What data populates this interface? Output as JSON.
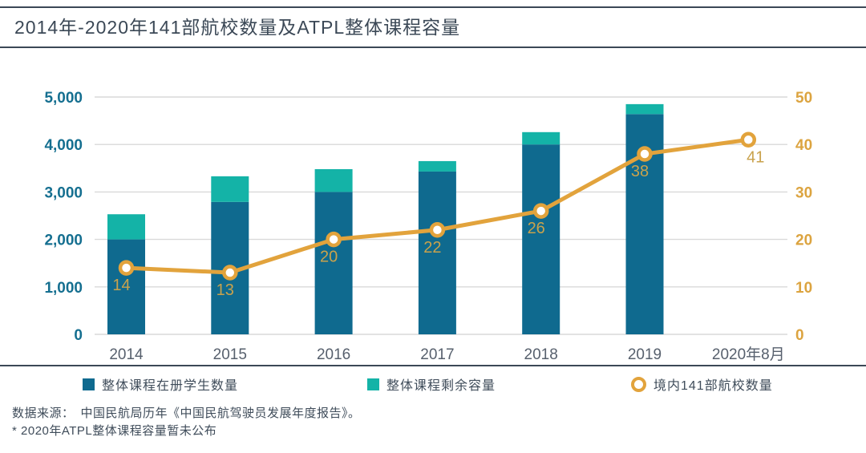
{
  "header": {
    "title": "2014年-2020年141部航校数量及ATPL整体课程容量"
  },
  "chart_data": {
    "type": "bar",
    "subtype": "stacked-bar-with-line-combo",
    "title": "2014年-2020年141部航校数量及ATPL整体课程容量",
    "categories": [
      "2014",
      "2015",
      "2016",
      "2017",
      "2018",
      "2019",
      "2020年8月"
    ],
    "series": [
      {
        "name": "整体课程在册学生数量",
        "type": "bar",
        "stack": "total",
        "color": "#0f6a8f",
        "values": [
          2000,
          2790,
          3000,
          3430,
          4000,
          4640,
          null
        ]
      },
      {
        "name": "整体课程剩余容量",
        "type": "bar",
        "stack": "total",
        "color": "#14b3a7",
        "values": [
          530,
          540,
          480,
          220,
          260,
          210,
          null
        ]
      },
      {
        "name": "境内141部航校数量",
        "type": "line",
        "axis": "right",
        "color": "#e2a33c",
        "values": [
          14,
          13,
          20,
          22,
          26,
          38,
          41
        ],
        "labels": [
          "14",
          "13",
          "20",
          "22",
          "26",
          "38",
          "41"
        ]
      }
    ],
    "left_axis": {
      "min": 0,
      "max": 5000,
      "step": 1000,
      "tick_labels": [
        "0",
        "1,000",
        "2,000",
        "3,000",
        "4,000",
        "5,000"
      ],
      "color": "#156f90"
    },
    "right_axis": {
      "min": 0,
      "max": 50,
      "step": 10,
      "tick_labels": [
        "0",
        "10",
        "20",
        "30",
        "40",
        "50"
      ],
      "color": "#dca440"
    },
    "grid": true,
    "gridline_color": "#d9d9d9",
    "x_label_color": "#57606d",
    "point_label_color": "#c9a24c",
    "legend_position": "bottom"
  },
  "legend": {
    "items": [
      {
        "label": "整体课程在册学生数量",
        "marker": "square",
        "color": "#0f6a8f"
      },
      {
        "label": "整体课程剩余容量",
        "marker": "square",
        "color": "#14b3a7"
      },
      {
        "label": "境内141部航校数量",
        "marker": "ring",
        "color": "#e2a33c"
      }
    ]
  },
  "footer": {
    "source": "数据来源： 中国民航局历年《中国民航驾驶员发展年度报告》。",
    "note": "* 2020年ATPL整体课程容量暂未公布"
  }
}
